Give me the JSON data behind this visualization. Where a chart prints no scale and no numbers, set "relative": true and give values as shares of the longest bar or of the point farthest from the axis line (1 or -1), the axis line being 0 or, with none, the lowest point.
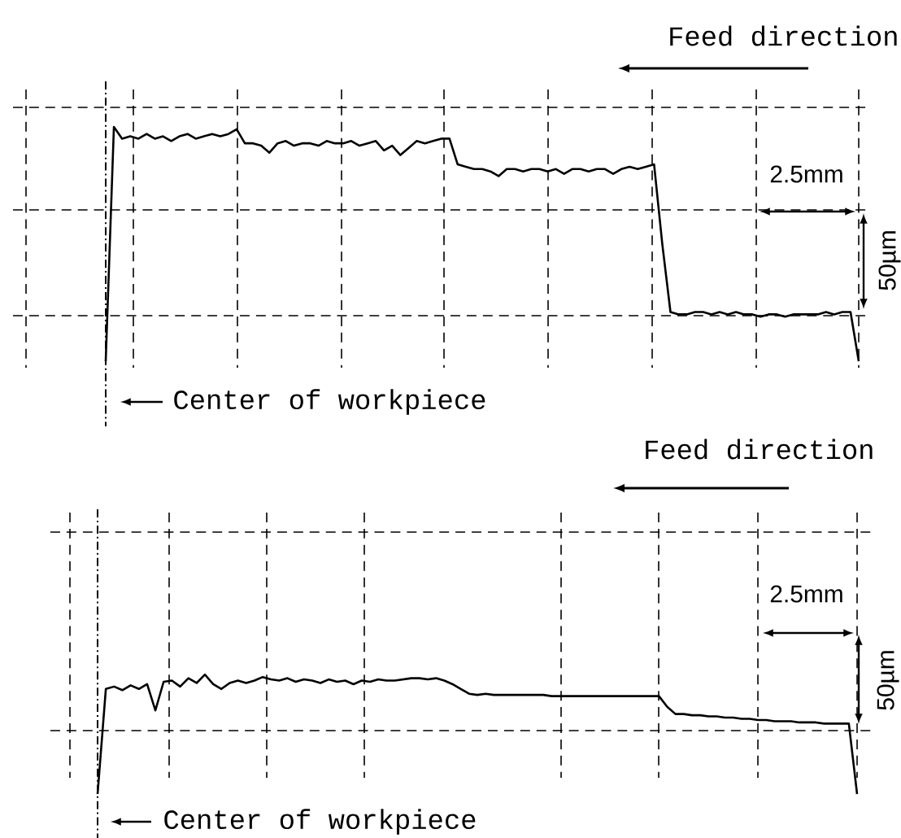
{
  "chart_data": [
    {
      "type": "line",
      "relative": true,
      "color": "#000000",
      "grid": true,
      "categories": [
        null,
        null,
        null,
        null,
        null,
        null,
        null,
        null,
        null,
        null,
        null,
        null,
        null,
        null,
        null,
        null,
        null,
        null,
        null,
        null,
        null,
        null,
        null,
        null,
        null,
        null,
        null,
        null,
        null,
        null,
        null,
        null,
        null,
        null,
        null,
        null,
        null,
        null,
        null,
        null,
        null,
        null,
        null,
        null,
        null,
        null,
        null,
        null,
        null,
        null,
        null,
        null,
        null,
        null,
        null,
        null,
        null,
        null,
        null,
        null,
        null,
        null,
        null,
        null,
        null,
        null,
        null,
        null,
        null,
        null,
        null,
        null,
        null,
        null,
        null,
        null,
        null,
        null,
        null,
        null,
        null,
        null,
        null,
        null,
        null,
        null,
        null,
        null,
        null,
        null,
        null,
        null,
        null
      ],
      "values": [
        0,
        1.0,
        0.95,
        0.96,
        0.95,
        0.97,
        0.95,
        0.96,
        0.94,
        0.96,
        0.97,
        0.95,
        0.96,
        0.97,
        0.96,
        0.97,
        0.99,
        0.93,
        0.93,
        0.92,
        0.89,
        0.93,
        0.94,
        0.92,
        0.93,
        0.93,
        0.92,
        0.94,
        0.93,
        0.93,
        0.94,
        0.92,
        0.93,
        0.94,
        0.9,
        0.92,
        0.88,
        0.91,
        0.94,
        0.93,
        0.94,
        0.95,
        0.95,
        0.84,
        0.83,
        0.82,
        0.82,
        0.81,
        0.79,
        0.82,
        0.82,
        0.81,
        0.82,
        0.82,
        0.81,
        0.82,
        0.8,
        0.82,
        0.82,
        0.81,
        0.82,
        0.82,
        0.8,
        0.82,
        0.83,
        0.82,
        0.83,
        0.84,
        0.5,
        0.21,
        0.2,
        0.2,
        0.21,
        0.21,
        0.2,
        0.21,
        0.2,
        0.21,
        0.2,
        0.2,
        0.19,
        0.2,
        0.2,
        0.19,
        0.2,
        0.2,
        0.2,
        0.2,
        0.21,
        0.2,
        0.21,
        0.21,
        0
      ],
      "annotations": [
        "Feed direction",
        "2.5mm",
        "50µm",
        "Center of workpiece"
      ]
    },
    {
      "type": "line",
      "relative": true,
      "color": "#000000",
      "grid": true,
      "categories": [
        null,
        null,
        null,
        null,
        null,
        null,
        null,
        null,
        null,
        null,
        null,
        null,
        null,
        null,
        null,
        null,
        null,
        null,
        null,
        null,
        null,
        null,
        null,
        null,
        null,
        null,
        null,
        null,
        null,
        null,
        null,
        null,
        null,
        null,
        null,
        null,
        null,
        null,
        null,
        null,
        null,
        null,
        null,
        null,
        null,
        null,
        null,
        null,
        null,
        null,
        null,
        null,
        null,
        null,
        null,
        null,
        null,
        null,
        null,
        null,
        null,
        null,
        null,
        null,
        null,
        null,
        null,
        null,
        null,
        null,
        null,
        null,
        null,
        null,
        null,
        null,
        null,
        null,
        null,
        null,
        null,
        null,
        null,
        null,
        null,
        null,
        null,
        null,
        null,
        null,
        null,
        null,
        null
      ],
      "values": [
        0,
        0.88,
        0.9,
        0.87,
        0.91,
        0.88,
        0.92,
        0.7,
        0.94,
        0.95,
        0.9,
        0.97,
        0.93,
        1.0,
        0.92,
        0.88,
        0.93,
        0.95,
        0.93,
        0.95,
        0.98,
        0.96,
        0.95,
        0.97,
        0.94,
        0.96,
        0.95,
        0.93,
        0.96,
        0.94,
        0.95,
        0.92,
        0.95,
        0.94,
        0.96,
        0.95,
        0.95,
        0.96,
        0.97,
        0.97,
        0.96,
        0.97,
        0.95,
        0.92,
        0.88,
        0.84,
        0.83,
        0.84,
        0.83,
        0.83,
        0.83,
        0.83,
        0.83,
        0.83,
        0.83,
        0.82,
        0.82,
        0.82,
        0.82,
        0.82,
        0.82,
        0.82,
        0.82,
        0.82,
        0.82,
        0.82,
        0.82,
        0.82,
        0.82,
        0.73,
        0.67,
        0.67,
        0.66,
        0.66,
        0.65,
        0.65,
        0.64,
        0.64,
        0.63,
        0.63,
        0.62,
        0.62,
        0.61,
        0.61,
        0.61,
        0.6,
        0.6,
        0.6,
        0.59,
        0.59,
        0.59,
        0.59,
        0
      ],
      "annotations": [
        "Feed direction",
        "2.5mm",
        "50µm",
        "Center of workpiece"
      ]
    }
  ]
}
